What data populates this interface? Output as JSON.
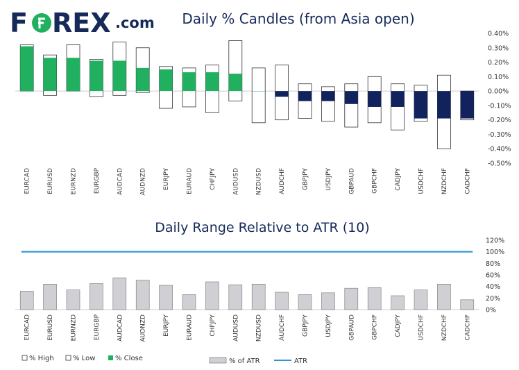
{
  "brand": {
    "name": "FOREX",
    "suffix": ".com",
    "navy": "#162a5a",
    "green": "#21b05f"
  },
  "colors": {
    "bull_body": "#21b05f",
    "bear_body": "#12225c",
    "range_body": "#ffffff",
    "atr_bar": "#cfcfd4",
    "atr_line": "#2e95d3",
    "axis_text": "#333333",
    "grid_line": "#d9d9d9"
  },
  "chart_data": [
    {
      "type": "bar",
      "title": "Daily % Candles (from Asia open)",
      "categories": [
        "EURCAD",
        "EURUSD",
        "EURNZD",
        "EURGBP",
        "AUDCAD",
        "AUDNZD",
        "EURJPY",
        "EURAUD",
        "CHFJPY",
        "AUDUSD",
        "NZDUSD",
        "AUDCHF",
        "GBPJPY",
        "USDJPY",
        "GBPAUD",
        "GBPCHF",
        "CADJPY",
        "USDCHF",
        "NZDCHF",
        "CADCHF"
      ],
      "series": [
        {
          "name": "% High",
          "values": [
            0.32,
            0.25,
            0.32,
            0.22,
            0.34,
            0.3,
            0.17,
            0.16,
            0.18,
            0.35,
            0.16,
            0.18,
            0.05,
            0.03,
            0.05,
            0.1,
            0.05,
            0.04,
            0.11,
            0.0
          ]
        },
        {
          "name": "% Low",
          "values": [
            0.0,
            -0.03,
            0.0,
            -0.04,
            -0.03,
            -0.01,
            -0.12,
            -0.11,
            -0.15,
            -0.07,
            -0.22,
            -0.2,
            -0.19,
            -0.21,
            -0.25,
            -0.22,
            -0.27,
            -0.21,
            -0.4,
            -0.2
          ]
        },
        {
          "name": "% Close",
          "values": [
            0.31,
            0.23,
            0.23,
            0.21,
            0.21,
            0.16,
            0.15,
            0.13,
            0.13,
            0.12,
            0.0,
            -0.04,
            -0.07,
            -0.07,
            -0.09,
            -0.11,
            -0.11,
            -0.19,
            -0.19,
            -0.19
          ]
        }
      ],
      "y_ticks": [
        "0.40%",
        "0.30%",
        "0.20%",
        "0.10%",
        "0.00%",
        "-0.10%",
        "-0.20%",
        "-0.30%",
        "-0.40%",
        "-0.50%"
      ],
      "ylim": [
        -0.5,
        0.4
      ],
      "legend": {
        "position": "bottom-left"
      }
    },
    {
      "type": "bar",
      "title": "Daily Range Relative to ATR (10)",
      "categories": [
        "EURCAD",
        "EURUSD",
        "EURNZD",
        "EURGBP",
        "AUDCAD",
        "AUDNZD",
        "EURJPY",
        "EURAUD",
        "CHFJPY",
        "AUDUSD",
        "NZDUSD",
        "AUDCHF",
        "GBPJPY",
        "USDJPY",
        "GBPAUD",
        "GBPCHF",
        "CADJPY",
        "USDCHF",
        "NZDCHF",
        "CADCHF"
      ],
      "series": [
        {
          "name": "% of ATR",
          "values": [
            32,
            44,
            34,
            45,
            55,
            51,
            42,
            26,
            48,
            43,
            44,
            30,
            26,
            29,
            37,
            38,
            24,
            34,
            44,
            17
          ]
        },
        {
          "name": "ATR",
          "values": [
            100,
            100,
            100,
            100,
            100,
            100,
            100,
            100,
            100,
            100,
            100,
            100,
            100,
            100,
            100,
            100,
            100,
            100,
            100,
            100
          ]
        }
      ],
      "y_ticks": [
        "120%",
        "100%",
        "80%",
        "60%",
        "40%",
        "20%",
        "0%"
      ],
      "ylim": [
        0,
        120
      ],
      "legend": {
        "position": "bottom-center"
      }
    }
  ]
}
